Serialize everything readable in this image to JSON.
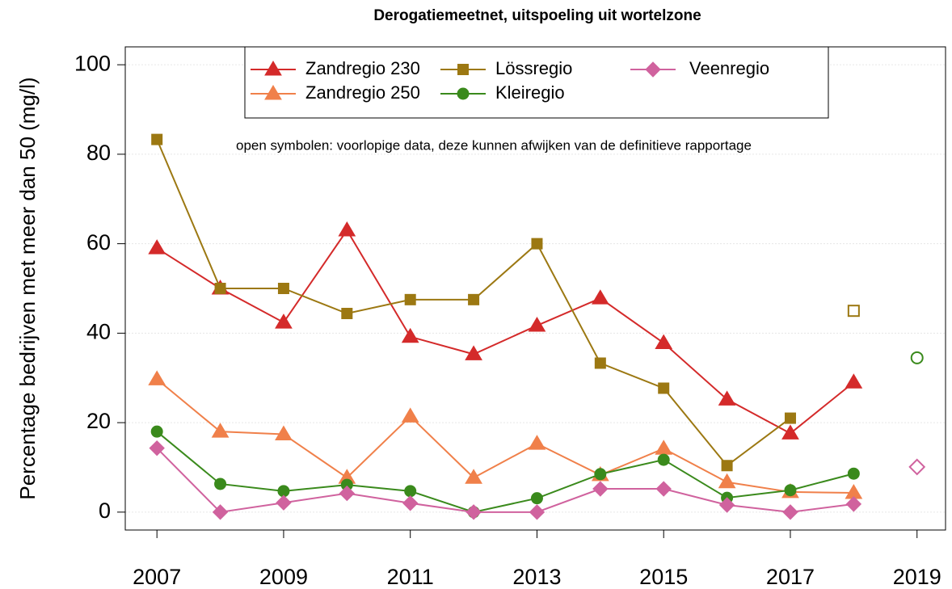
{
  "chart_data": {
    "type": "line",
    "title": "Derogatiemeetnet, uitspoeling uit wortelzone",
    "y_label": "Percentage bedrijven met meer dan 50 (mg/l)",
    "annotation": "open symbolen: voorlopige data, deze kunnen afwijken van de definitieve rapportage",
    "x": [
      2007,
      2008,
      2009,
      2010,
      2011,
      2012,
      2013,
      2014,
      2015,
      2016,
      2017,
      2018,
      2019
    ],
    "xlim": [
      2006.5,
      2019.45
    ],
    "xticks": [
      2007,
      2009,
      2011,
      2013,
      2015,
      2017,
      2019
    ],
    "ylim": [
      -4,
      104
    ],
    "yticks": [
      0,
      20,
      40,
      60,
      80,
      100
    ],
    "grid": true,
    "legend_position": "top",
    "series": [
      {
        "name": "Zandregio 230",
        "color": "#d42a2a",
        "marker": "triangle",
        "values": [
          59,
          50,
          42.4,
          63,
          39.2,
          35.3,
          41.7,
          47.8,
          37.8,
          25.2,
          17.6,
          29,
          null
        ],
        "provisional": [
          null,
          null,
          null,
          null,
          null,
          null,
          null,
          null,
          null,
          null,
          null,
          null,
          null
        ]
      },
      {
        "name": "Zandregio 250",
        "color": "#f0804a",
        "marker": "triangle",
        "values": [
          29.7,
          18,
          17.4,
          7.7,
          21.4,
          7.7,
          15.3,
          8.3,
          14.2,
          6.7,
          4.5,
          4.3,
          null
        ],
        "provisional": [
          null,
          null,
          null,
          null,
          null,
          null,
          null,
          null,
          null,
          null,
          null,
          null,
          null
        ]
      },
      {
        "name": "Lössregio",
        "color": "#9c7812",
        "marker": "square",
        "values": [
          83.3,
          50,
          50,
          44.4,
          47.5,
          47.5,
          60,
          33.3,
          27.7,
          10.4,
          21,
          null,
          null
        ],
        "provisional": [
          null,
          null,
          null,
          null,
          null,
          null,
          null,
          null,
          null,
          null,
          null,
          45,
          null
        ]
      },
      {
        "name": "Kleiregio",
        "color": "#3a8a1c",
        "marker": "circle",
        "values": [
          18,
          6.3,
          4.7,
          6.1,
          4.7,
          0,
          3.1,
          8.5,
          11.7,
          3.2,
          4.9,
          8.6,
          null
        ],
        "provisional": [
          null,
          null,
          null,
          null,
          null,
          null,
          null,
          null,
          null,
          null,
          null,
          null,
          34.5
        ]
      },
      {
        "name": "Veenregio",
        "color": "#d0629e",
        "marker": "diamond",
        "values": [
          14.3,
          0,
          2.1,
          4.2,
          2,
          0,
          0,
          5.2,
          5.2,
          1.6,
          0,
          1.8,
          null
        ],
        "provisional": [
          null,
          null,
          null,
          null,
          null,
          null,
          null,
          null,
          null,
          null,
          null,
          null,
          10.1
        ]
      }
    ]
  }
}
